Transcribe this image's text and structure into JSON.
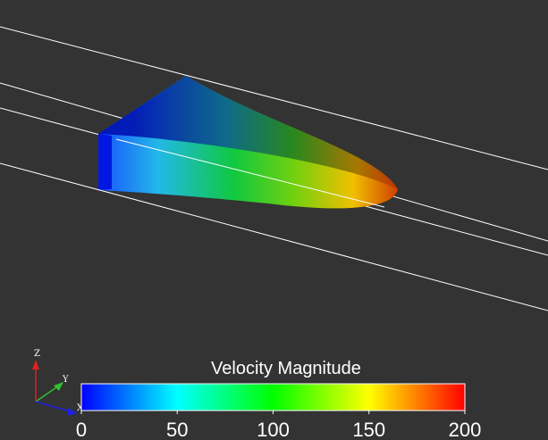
{
  "colorbar": {
    "title": "Velocity Magnitude",
    "range": [
      0,
      200
    ],
    "ticks": [
      0,
      50,
      100,
      150,
      200
    ]
  },
  "axes_triad": {
    "labels": [
      "Z",
      "Y",
      "X"
    ]
  }
}
